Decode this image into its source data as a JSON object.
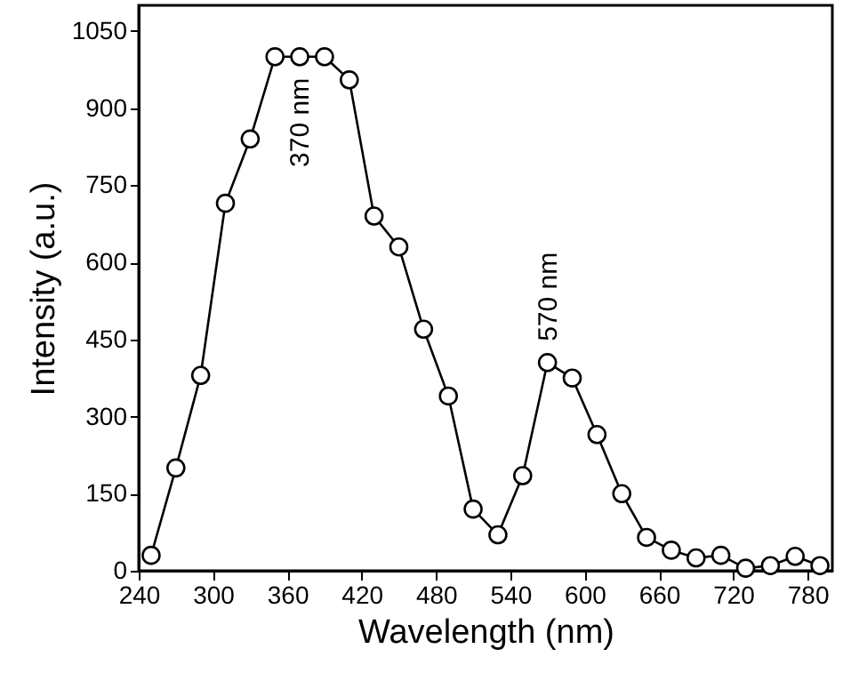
{
  "chart_data": {
    "type": "line",
    "xlabel": "Wavelength (nm)",
    "ylabel": "Intensity (a.u.)",
    "x": [
      250,
      270,
      290,
      310,
      330,
      350,
      370,
      390,
      410,
      430,
      450,
      470,
      490,
      510,
      530,
      550,
      570,
      590,
      610,
      630,
      650,
      670,
      690,
      710,
      730,
      750,
      770,
      790
    ],
    "series": [
      {
        "color": "#000000",
        "values": [
          30,
          200,
          380,
          715,
          840,
          1000,
          1000,
          1000,
          955,
          690,
          630,
          470,
          340,
          120,
          70,
          185,
          405,
          375,
          265,
          150,
          65,
          40,
          25,
          30,
          5,
          10,
          28,
          10
        ]
      }
    ],
    "xlim": [
      240,
      800
    ],
    "xticks": [
      240,
      300,
      360,
      420,
      480,
      540,
      600,
      660,
      720,
      780
    ],
    "ylim": [
      0,
      1100
    ],
    "yticks": [
      0,
      150,
      300,
      450,
      600,
      750,
      900,
      1050
    ],
    "marker": "circle",
    "line_style": "solid",
    "grid": false,
    "annotations": [
      {
        "text": "370 nm",
        "x": 370,
        "y": 1000
      },
      {
        "text": "570 nm",
        "x": 570,
        "y": 405
      }
    ]
  }
}
